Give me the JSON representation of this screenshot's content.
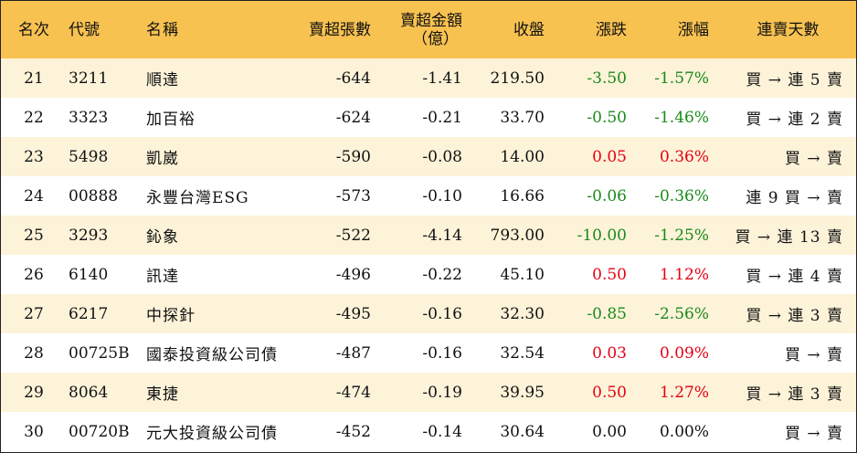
{
  "headers": {
    "rank": "名次",
    "code": "代號",
    "name": "名稱",
    "net_sell_lots": "賣超張數",
    "net_sell_amount_line1": "賣超金額",
    "net_sell_amount_line2": "（億）",
    "close": "收盤",
    "change": "漲跌",
    "change_pct": "漲幅",
    "streak": "連賣天數"
  },
  "colors": {
    "header_bg": "#f8c251",
    "odd_row_bg": "#fdf3d9",
    "up": "#e60012",
    "down": "#1a8a1a"
  },
  "rows": [
    {
      "rank": "21",
      "code": "3211",
      "name": "順達",
      "lots": "-644",
      "amount": "-1.41",
      "close": "219.50",
      "change": "-3.50",
      "pct": "-1.57%",
      "dir": "neg",
      "streak": "買 → 連 5 賣"
    },
    {
      "rank": "22",
      "code": "3323",
      "name": "加百裕",
      "lots": "-624",
      "amount": "-0.21",
      "close": "33.70",
      "change": "-0.50",
      "pct": "-1.46%",
      "dir": "neg",
      "streak": "買 → 連 2 賣"
    },
    {
      "rank": "23",
      "code": "5498",
      "name": "凱崴",
      "lots": "-590",
      "amount": "-0.08",
      "close": "14.00",
      "change": "0.05",
      "pct": "0.36%",
      "dir": "pos",
      "streak": "買 → 賣"
    },
    {
      "rank": "24",
      "code": "00888",
      "name": "永豐台灣ESG",
      "lots": "-573",
      "amount": "-0.10",
      "close": "16.66",
      "change": "-0.06",
      "pct": "-0.36%",
      "dir": "neg",
      "streak": "連 9 買 → 賣"
    },
    {
      "rank": "25",
      "code": "3293",
      "name": "鈊象",
      "lots": "-522",
      "amount": "-4.14",
      "close": "793.00",
      "change": "-10.00",
      "pct": "-1.25%",
      "dir": "neg",
      "streak": "買 → 連 13 賣"
    },
    {
      "rank": "26",
      "code": "6140",
      "name": "訊達",
      "lots": "-496",
      "amount": "-0.22",
      "close": "45.10",
      "change": "0.50",
      "pct": "1.12%",
      "dir": "pos",
      "streak": "買 → 連 4 賣"
    },
    {
      "rank": "27",
      "code": "6217",
      "name": "中探針",
      "lots": "-495",
      "amount": "-0.16",
      "close": "32.30",
      "change": "-0.85",
      "pct": "-2.56%",
      "dir": "neg",
      "streak": "買 → 連 3 賣"
    },
    {
      "rank": "28",
      "code": "00725B",
      "name": "國泰投資級公司債",
      "lots": "-487",
      "amount": "-0.16",
      "close": "32.54",
      "change": "0.03",
      "pct": "0.09%",
      "dir": "pos",
      "streak": "買 → 賣"
    },
    {
      "rank": "29",
      "code": "8064",
      "name": "東捷",
      "lots": "-474",
      "amount": "-0.19",
      "close": "39.95",
      "change": "0.50",
      "pct": "1.27%",
      "dir": "pos",
      "streak": "買 → 連 3 賣"
    },
    {
      "rank": "30",
      "code": "00720B",
      "name": "元大投資級公司債",
      "lots": "-452",
      "amount": "-0.14",
      "close": "30.64",
      "change": "0.00",
      "pct": "0.00%",
      "dir": "flat",
      "streak": "買 → 賣"
    }
  ]
}
